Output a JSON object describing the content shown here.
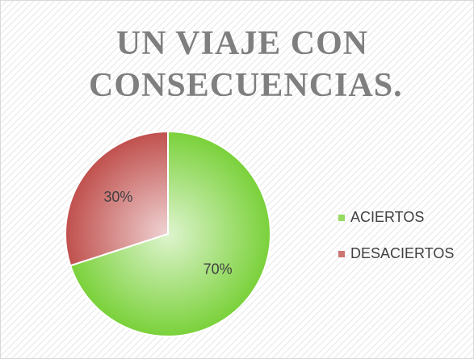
{
  "chart_data": {
    "type": "pie",
    "title": "UN VIAJE CON CONSECUENCIAS.",
    "categories": [
      "ACIERTOS",
      "DESACIERTOS"
    ],
    "values": [
      70,
      30
    ],
    "value_labels": [
      "70%",
      "30%"
    ],
    "colors": [
      "#7ad13a",
      "#c0504d"
    ],
    "legend": "right"
  }
}
